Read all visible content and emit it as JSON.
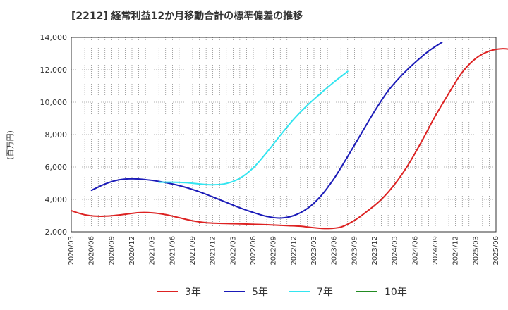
{
  "chart_data": {
    "type": "line",
    "title": "[2212]  経常利益12か月移動合計の標準偏差の推移",
    "ylabel": "(百万円)",
    "xlabel": "",
    "ylim": [
      2000,
      14000
    ],
    "yticks": [
      2000,
      4000,
      6000,
      8000,
      10000,
      12000,
      14000
    ],
    "ytick_labels": [
      "2,000",
      "4,000",
      "6,000",
      "8,000",
      "10,000",
      "12,000",
      "14,000"
    ],
    "x_tick_labels": [
      "2020/03",
      "2020/06",
      "2020/09",
      "2020/12",
      "2021/03",
      "2021/06",
      "2021/09",
      "2021/12",
      "2022/03",
      "2022/06",
      "2022/09",
      "2022/12",
      "2023/03",
      "2023/06",
      "2023/09",
      "2023/12",
      "2024/03",
      "2024/06",
      "2024/09",
      "2024/12",
      "2025/03",
      "2025/06"
    ],
    "grid": true,
    "legend_position": "bottom",
    "series": [
      {
        "name": "3年",
        "color": "#dd2222",
        "start_index": 0,
        "values": [
          3300,
          3050,
          2960,
          2990,
          3080,
          3180,
          3170,
          3060,
          2870,
          2680,
          2560,
          2520,
          2500,
          2480,
          2450,
          2420,
          2380,
          2340,
          2250,
          2200,
          2290,
          2700,
          3300,
          4000,
          4950,
          6150,
          7600,
          9150,
          10550,
          11850,
          12700,
          13150,
          13300,
          13200
        ]
      },
      {
        "name": "5年",
        "color": "#1a1ab8",
        "start_index": 3,
        "values": [
          4560,
          4950,
          5200,
          5270,
          5220,
          5110,
          4950,
          4740,
          4470,
          4150,
          3820,
          3480,
          3190,
          2950,
          2850,
          3000,
          3430,
          4200,
          5300,
          6650,
          8050,
          9450,
          10700,
          11650,
          12450,
          13150,
          13700
        ]
      },
      {
        "name": "7年",
        "color": "#33e5f0",
        "start_index": 13,
        "values": [
          5060,
          5060,
          5030,
          4950,
          4900,
          4980,
          5300,
          5950,
          6900,
          7950,
          8950,
          9800,
          10550,
          11250,
          11900
        ]
      },
      {
        "name": "10年",
        "color": "#228b22",
        "start_index": 0,
        "values": []
      }
    ]
  }
}
